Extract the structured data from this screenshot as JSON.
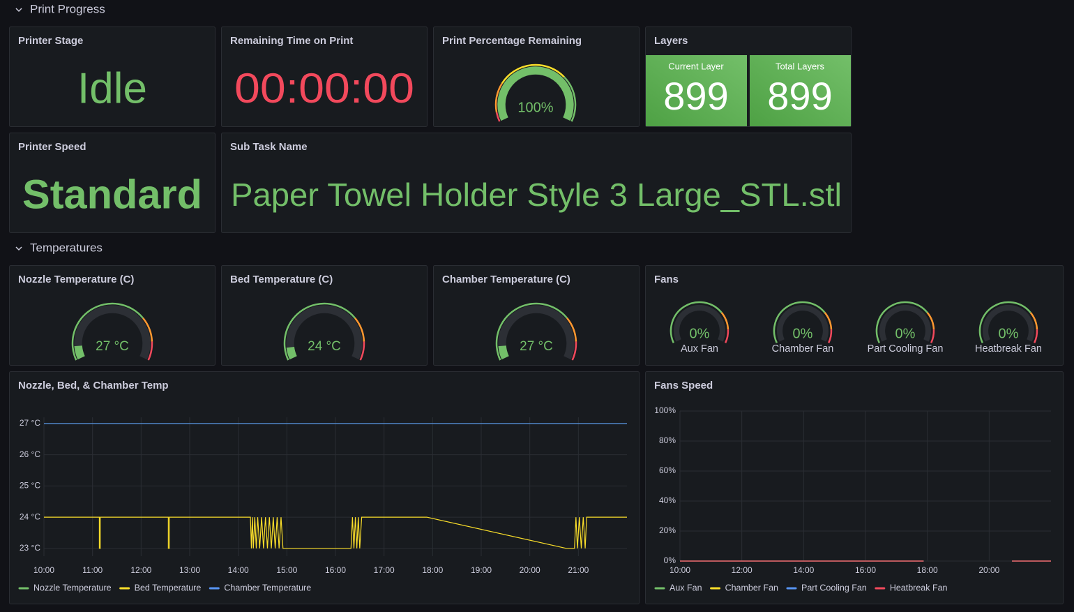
{
  "sections": [
    {
      "title": "Print Progress"
    },
    {
      "title": "Temperatures"
    }
  ],
  "stat_panels": {
    "printer_stage": {
      "title": "Printer Stage",
      "value": "Idle"
    },
    "remaining_time": {
      "title": "Remaining Time on Print",
      "value": "00:00:00"
    },
    "printer_speed": {
      "title": "Printer Speed",
      "value": "Standard"
    },
    "sub_task": {
      "title": "Sub Task Name",
      "value": "Paper Towel Holder Style 3 Large_STL.stl"
    }
  },
  "layers": {
    "title": "Layers",
    "items": [
      {
        "name": "Current Layer",
        "value": 899
      },
      {
        "name": "Total Layers",
        "value": 899
      }
    ]
  },
  "gauge_panels": [
    {
      "title": "Print Percentage Remaining",
      "value": 100,
      "value_label": "100%",
      "range": [
        0,
        100
      ]
    },
    {
      "title": "Nozzle Temperature (C)",
      "value": 27,
      "value_label": "27 °C",
      "range": [
        0,
        300
      ]
    },
    {
      "title": "Bed Temperature (C)",
      "value": 24,
      "value_label": "24 °C",
      "range": [
        0,
        300
      ]
    },
    {
      "title": "Chamber Temperature (C)",
      "value": 27,
      "value_label": "27 °C",
      "range": [
        0,
        300
      ]
    }
  ],
  "fans_panel": {
    "title": "Fans",
    "gauges": [
      {
        "name": "Aux Fan",
        "value": 0,
        "value_label": "0%",
        "range": [
          0,
          100
        ]
      },
      {
        "name": "Chamber Fan",
        "value": 0,
        "value_label": "0%",
        "range": [
          0,
          100
        ]
      },
      {
        "name": "Part Cooling Fan",
        "value": 0,
        "value_label": "0%",
        "range": [
          0,
          100
        ]
      },
      {
        "name": "Heatbreak Fan",
        "value": 0,
        "value_label": "0%",
        "range": [
          0,
          100
        ]
      }
    ]
  },
  "chart_data": [
    {
      "type": "line",
      "title": "Nozzle, Bed, & Chamber Temp",
      "x": [
        10,
        11.14,
        11.14,
        11.16,
        11.16,
        12.56,
        12.56,
        12.58,
        12.58,
        14.25,
        14.27,
        14.29,
        14.31,
        14.34,
        14.37,
        14.4,
        14.44,
        14.48,
        14.52,
        14.56,
        14.6,
        14.64,
        14.68,
        14.72,
        14.76,
        14.8,
        14.84,
        14.88,
        14.92,
        16.32,
        16.35,
        16.38,
        16.41,
        16.44,
        16.47,
        16.5,
        16.54,
        17.88,
        20.75,
        20.92,
        20.95,
        20.98,
        21.02,
        21.06,
        21.1,
        21.14,
        21.17,
        22
      ],
      "series": [
        {
          "name": "Nozzle Temperature",
          "color": "#73bf69",
          "values": [
            27,
            27,
            27,
            27,
            27,
            27,
            27,
            27,
            27,
            27,
            27,
            27,
            27,
            27,
            27,
            27,
            27,
            27,
            27,
            27,
            27,
            27,
            27,
            27,
            27,
            27,
            27,
            27,
            27,
            27,
            27,
            27,
            27,
            27,
            27,
            27,
            27,
            27,
            27,
            27,
            27,
            27,
            27,
            27,
            27,
            27,
            27,
            27
          ]
        },
        {
          "name": "Bed Temperature",
          "color": "#fade2a",
          "values": [
            24,
            24,
            23,
            23,
            24,
            24,
            23,
            23,
            24,
            24,
            23,
            24,
            23,
            24,
            23,
            24,
            23,
            24,
            23,
            24,
            23,
            24,
            23,
            24,
            23,
            24,
            23,
            24,
            23,
            23,
            24,
            23,
            24,
            23,
            24,
            23,
            24,
            24,
            23,
            23,
            24,
            23,
            24,
            23,
            24,
            23,
            24,
            24
          ]
        },
        {
          "name": "Chamber Temperature",
          "color": "#5794f2",
          "values": [
            27,
            27,
            27,
            27,
            27,
            27,
            27,
            27,
            27,
            27,
            27,
            27,
            27,
            27,
            27,
            27,
            27,
            27,
            27,
            27,
            27,
            27,
            27,
            27,
            27,
            27,
            27,
            27,
            27,
            27,
            27,
            27,
            27,
            27,
            27,
            27,
            27,
            27,
            27,
            27,
            27,
            27,
            27,
            27,
            27,
            27,
            27,
            27
          ]
        }
      ],
      "xlim": [
        10,
        22
      ],
      "xticks": [
        {
          "value": 10,
          "label": "10:00"
        },
        {
          "value": 11,
          "label": "11:00"
        },
        {
          "value": 12,
          "label": "12:00"
        },
        {
          "value": 13,
          "label": "13:00"
        },
        {
          "value": 14,
          "label": "14:00"
        },
        {
          "value": 15,
          "label": "15:00"
        },
        {
          "value": 16,
          "label": "16:00"
        },
        {
          "value": 17,
          "label": "17:00"
        },
        {
          "value": 18,
          "label": "18:00"
        },
        {
          "value": 19,
          "label": "19:00"
        },
        {
          "value": 20,
          "label": "20:00"
        },
        {
          "value": 21,
          "label": "21:00"
        }
      ],
      "ylim": [
        22.75,
        27.2
      ],
      "yticks": [
        {
          "value": 23,
          "label": "23 °C"
        },
        {
          "value": 24,
          "label": "24 °C"
        },
        {
          "value": 25,
          "label": "25 °C"
        },
        {
          "value": 26,
          "label": "26 °C"
        },
        {
          "value": 27,
          "label": "27 °C"
        }
      ],
      "grid": true
    },
    {
      "type": "line",
      "title": "Fans Speed",
      "x": [
        10,
        17.88,
        19,
        20.74,
        22
      ],
      "series": [
        {
          "name": "Aux Fan",
          "color": "#73bf69",
          "values": [
            0,
            0,
            null,
            0,
            0
          ]
        },
        {
          "name": "Chamber Fan",
          "color": "#fade2a",
          "values": [
            0,
            0,
            null,
            0,
            0
          ]
        },
        {
          "name": "Part Cooling Fan",
          "color": "#5794f2",
          "values": [
            0,
            0,
            null,
            0,
            0
          ]
        },
        {
          "name": "Heatbreak Fan",
          "color": "#f2495c",
          "values": [
            0,
            0,
            null,
            0,
            0
          ]
        }
      ],
      "xlim": [
        10,
        22
      ],
      "xticks": [
        {
          "value": 10,
          "label": "10:00"
        },
        {
          "value": 12,
          "label": "12:00"
        },
        {
          "value": 14,
          "label": "14:00"
        },
        {
          "value": 16,
          "label": "16:00"
        },
        {
          "value": 18,
          "label": "18:00"
        },
        {
          "value": 20,
          "label": "20:00"
        }
      ],
      "ylim": [
        0,
        100
      ],
      "yticks": [
        {
          "value": 0,
          "label": "0%"
        },
        {
          "value": 20,
          "label": "20%"
        },
        {
          "value": 40,
          "label": "40%"
        },
        {
          "value": 60,
          "label": "60%"
        },
        {
          "value": 80,
          "label": "80%"
        },
        {
          "value": 100,
          "label": "100%"
        }
      ],
      "grid": true
    }
  ]
}
